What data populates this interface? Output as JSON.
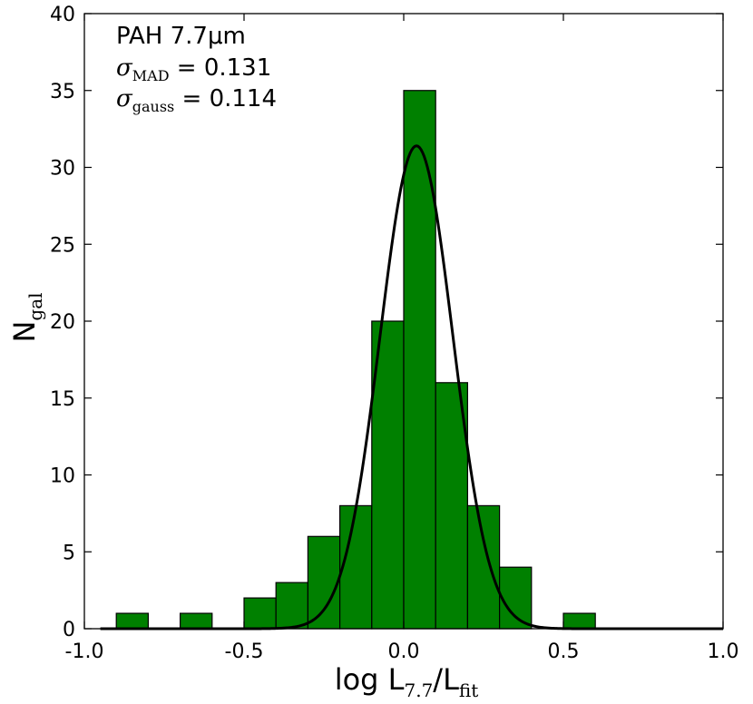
{
  "chart_data": {
    "type": "bar",
    "subtype": "histogram",
    "bin_edges": [
      -0.9,
      -0.8,
      -0.7,
      -0.6,
      -0.5,
      -0.4,
      -0.3,
      -0.2,
      -0.1,
      0.0,
      0.1,
      0.2,
      0.3,
      0.4,
      0.5,
      0.6
    ],
    "counts": [
      1,
      0,
      1,
      0,
      2,
      3,
      6,
      8,
      20,
      35,
      16,
      8,
      4,
      0,
      1
    ],
    "bar_color": "#008000",
    "edge_color": "#000000",
    "fit_curve": {
      "type": "gaussian",
      "amplitude": 31.4,
      "mean": 0.04,
      "sigma": 0.114,
      "color": "#000000"
    },
    "xlim": [
      -1.0,
      1.0
    ],
    "ylim": [
      0,
      40
    ],
    "xticks": [
      -1.0,
      -0.5,
      0.0,
      0.5,
      1.0
    ],
    "xtick_labels": [
      "-1.0",
      "-0.5",
      "0.0",
      "0.5",
      "1.0"
    ],
    "yticks": [
      0,
      5,
      10,
      15,
      20,
      25,
      30,
      35,
      40
    ],
    "ytick_labels": [
      "0",
      "5",
      "10",
      "15",
      "20",
      "25",
      "30",
      "35",
      "40"
    ],
    "xlabel": {
      "main": "log L",
      "sub1": "7.7",
      "mid": "/L",
      "sub2": "fit"
    },
    "ylabel": {
      "main": "N",
      "sub": "gal"
    },
    "annotations": {
      "line1": "PAH 7.7μm",
      "line2": {
        "symbol": "σ",
        "sub": "MAD",
        "text": " = 0.131"
      },
      "line3": {
        "symbol": "σ",
        "sub": "gauss",
        "text": " = 0.114"
      }
    },
    "grid": false
  }
}
